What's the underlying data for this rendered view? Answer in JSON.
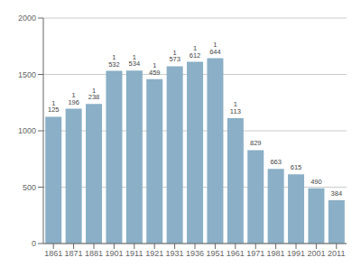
{
  "chart_data": {
    "type": "bar",
    "categories": [
      "1861",
      "1871",
      "1881",
      "1901",
      "1911",
      "1921",
      "1931",
      "1936",
      "1951",
      "1961",
      "1971",
      "1981",
      "1991",
      "2001",
      "2011"
    ],
    "values": [
      1125,
      1196,
      1238,
      1532,
      1534,
      1459,
      1573,
      1612,
      1644,
      1113,
      829,
      663,
      615,
      490,
      384
    ],
    "value_labels": [
      "1 125",
      "1 196",
      "1 238",
      "1 532",
      "1 534",
      "1 459",
      "1 573",
      "1 612",
      "1 644",
      "1 113",
      "829",
      "663",
      "615",
      "490",
      "384"
    ],
    "color": "#8AAFC6",
    "ylim": [
      0,
      2000
    ],
    "yticks": [
      0,
      500,
      1000,
      1500,
      2000
    ],
    "grid": true,
    "data_labels": true
  }
}
